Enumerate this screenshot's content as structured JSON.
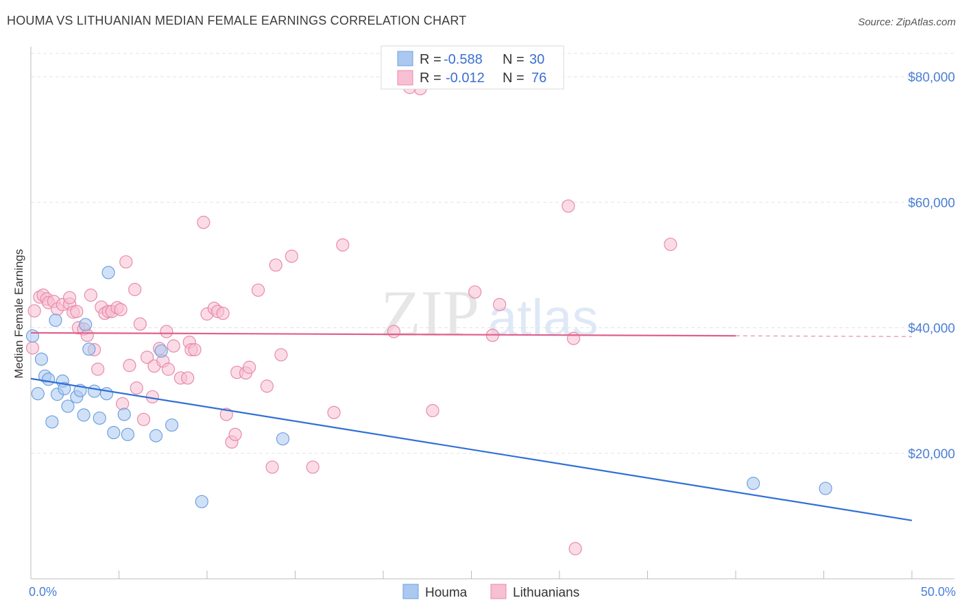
{
  "title": "HOUMA VS LITHUANIAN MEDIAN FEMALE EARNINGS CORRELATION CHART",
  "source": "Source: ZipAtlas.com",
  "watermark": {
    "zip": "ZIP",
    "atlas": "atlas"
  },
  "chart_data": {
    "type": "scatter",
    "xlabel": "",
    "ylabel": "Median Female Earnings",
    "xlim": [
      0,
      50
    ],
    "ylim": [
      0,
      83500
    ],
    "x_tick_labels": [
      "0.0%",
      "50.0%"
    ],
    "y_ticks": [
      20000,
      40000,
      60000,
      80000
    ],
    "y_tick_labels": [
      "$20,000",
      "$40,000",
      "$60,000",
      "$80,000"
    ],
    "legend": [
      {
        "swatch_color": "#aac8f0",
        "stroke": "#6f9fe0",
        "r_label": "R = ",
        "r_value": "-0.588",
        "n_label": "N = ",
        "n_value": "30"
      },
      {
        "swatch_color": "#f7bfd2",
        "stroke": "#e88aa8",
        "r_label": "R = ",
        "r_value": "-0.012",
        "n_label": "N = ",
        "n_value": "76"
      }
    ],
    "bottom_legend": [
      "Houma",
      "Lithuanians"
    ],
    "series": [
      {
        "name": "Houma",
        "fill": "#aac8f0",
        "stroke": "#6f9fe0",
        "trend_color": "#2f6fd6",
        "trend": {
          "x0": 0,
          "y0": 31900,
          "x1": 50,
          "y1": 9300,
          "solid_until": 50
        },
        "points": [
          [
            0.1,
            38700
          ],
          [
            0.6,
            35000
          ],
          [
            0.4,
            29500
          ],
          [
            0.8,
            32300
          ],
          [
            1.0,
            31800
          ],
          [
            1.2,
            25000
          ],
          [
            1.4,
            41200
          ],
          [
            1.5,
            29400
          ],
          [
            1.8,
            31500
          ],
          [
            1.9,
            30300
          ],
          [
            2.1,
            27500
          ],
          [
            2.6,
            29000
          ],
          [
            2.8,
            30000
          ],
          [
            3.0,
            26100
          ],
          [
            3.1,
            40500
          ],
          [
            3.3,
            36600
          ],
          [
            3.6,
            29900
          ],
          [
            3.9,
            25600
          ],
          [
            4.3,
            29500
          ],
          [
            4.4,
            48800
          ],
          [
            4.7,
            23300
          ],
          [
            5.3,
            26200
          ],
          [
            5.5,
            23000
          ],
          [
            7.1,
            22800
          ],
          [
            7.4,
            36300
          ],
          [
            8.0,
            24500
          ],
          [
            9.7,
            12300
          ],
          [
            14.3,
            22300
          ],
          [
            41.0,
            15200
          ],
          [
            45.1,
            14400
          ]
        ]
      },
      {
        "name": "Lithuanians",
        "fill": "#f7bfd2",
        "stroke": "#e88aa8",
        "trend_color": "#e0608a",
        "trend": {
          "x0": 0,
          "y0": 39200,
          "x1": 50,
          "y1": 38600,
          "solid_until": 40
        },
        "points": [
          [
            0.1,
            36800
          ],
          [
            0.2,
            42700
          ],
          [
            0.5,
            44900
          ],
          [
            0.7,
            45200
          ],
          [
            0.9,
            44600
          ],
          [
            1.0,
            44000
          ],
          [
            1.3,
            44200
          ],
          [
            1.5,
            43000
          ],
          [
            1.8,
            43700
          ],
          [
            2.2,
            43800
          ],
          [
            2.2,
            44800
          ],
          [
            2.4,
            42500
          ],
          [
            2.6,
            42600
          ],
          [
            2.7,
            40000
          ],
          [
            3.0,
            39800
          ],
          [
            3.2,
            38800
          ],
          [
            3.4,
            45200
          ],
          [
            3.6,
            36500
          ],
          [
            3.8,
            33400
          ],
          [
            4.0,
            43300
          ],
          [
            4.2,
            42300
          ],
          [
            4.4,
            42600
          ],
          [
            4.6,
            42600
          ],
          [
            4.9,
            43200
          ],
          [
            5.1,
            42900
          ],
          [
            5.2,
            27900
          ],
          [
            5.4,
            50500
          ],
          [
            5.6,
            34000
          ],
          [
            5.9,
            46100
          ],
          [
            6.0,
            30400
          ],
          [
            6.2,
            40600
          ],
          [
            6.4,
            25400
          ],
          [
            6.6,
            35300
          ],
          [
            6.9,
            29000
          ],
          [
            7.0,
            33900
          ],
          [
            7.3,
            36700
          ],
          [
            7.5,
            34700
          ],
          [
            7.7,
            39400
          ],
          [
            7.8,
            33400
          ],
          [
            8.1,
            37100
          ],
          [
            8.5,
            32000
          ],
          [
            8.9,
            32000
          ],
          [
            9.0,
            37700
          ],
          [
            9.1,
            36500
          ],
          [
            9.3,
            36500
          ],
          [
            9.8,
            56800
          ],
          [
            10.0,
            42200
          ],
          [
            10.4,
            43100
          ],
          [
            10.6,
            42600
          ],
          [
            10.9,
            42300
          ],
          [
            11.1,
            26200
          ],
          [
            11.4,
            21800
          ],
          [
            11.6,
            23000
          ],
          [
            11.7,
            32900
          ],
          [
            12.2,
            32800
          ],
          [
            12.4,
            33700
          ],
          [
            12.9,
            46000
          ],
          [
            13.4,
            30700
          ],
          [
            13.7,
            17800
          ],
          [
            13.9,
            50000
          ],
          [
            14.2,
            35700
          ],
          [
            14.8,
            51400
          ],
          [
            16.0,
            17800
          ],
          [
            17.2,
            26500
          ],
          [
            17.7,
            53200
          ],
          [
            20.6,
            39400
          ],
          [
            22.1,
            78100
          ],
          [
            22.8,
            26800
          ],
          [
            25.2,
            45700
          ],
          [
            26.2,
            38800
          ],
          [
            26.6,
            43700
          ],
          [
            30.5,
            59400
          ],
          [
            30.8,
            38300
          ],
          [
            30.9,
            4800
          ],
          [
            36.3,
            53300
          ],
          [
            21.5,
            78300
          ]
        ]
      }
    ]
  }
}
